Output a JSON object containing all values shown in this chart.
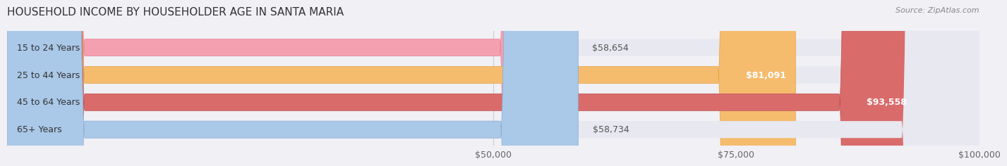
{
  "title": "HOUSEHOLD INCOME BY HOUSEHOLDER AGE IN SANTA MARIA",
  "source": "Source: ZipAtlas.com",
  "categories": [
    "15 to 24 Years",
    "25 to 44 Years",
    "45 to 64 Years",
    "65+ Years"
  ],
  "values": [
    58654,
    81091,
    93558,
    58734
  ],
  "bar_colors": [
    "#f4a0b0",
    "#f5bc6e",
    "#d96b6b",
    "#aac8e8"
  ],
  "bar_edge_colors": [
    "#e8808e",
    "#e8a040",
    "#c05050",
    "#88aad0"
  ],
  "label_colors": [
    "#555555",
    "#ffffff",
    "#ffffff",
    "#555555"
  ],
  "x_min": 0,
  "x_max": 100000,
  "x_ticks": [
    50000,
    75000,
    100000
  ],
  "x_tick_labels": [
    "$50,000",
    "$75,000",
    "$100,000"
  ],
  "value_labels": [
    "$58,654",
    "$81,091",
    "$93,558",
    "$58,734"
  ],
  "title_fontsize": 11,
  "source_fontsize": 8,
  "label_fontsize": 9,
  "tick_fontsize": 9,
  "background_color": "#f0f0f5",
  "bar_bg_color": "#e8e8f0"
}
